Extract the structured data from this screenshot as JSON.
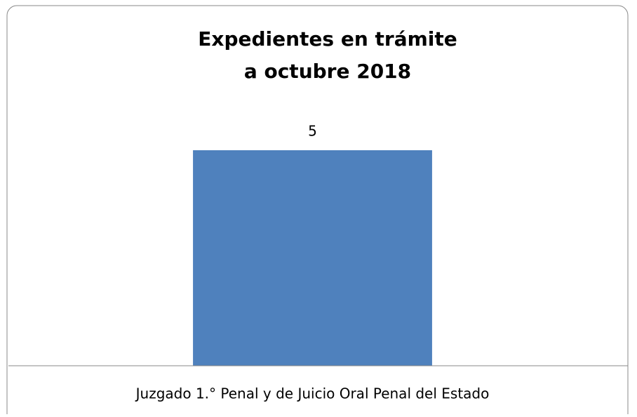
{
  "chart_data": {
    "type": "bar",
    "title": [
      "Expedientes en trámite",
      "a octubre 2018"
    ],
    "categories": [
      "Juzgado 1.° Penal y de Juicio Oral Penal del Estado"
    ],
    "values": [
      5
    ],
    "color": "#4f81bd",
    "ylim": [
      0,
      6
    ],
    "data_labels": true
  }
}
